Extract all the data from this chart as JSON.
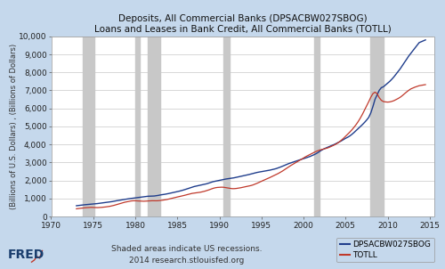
{
  "title_line1": "Deposits, All Commercial Banks (DPSACBW027SBOG)",
  "title_line2": "Loans and Leases in Bank Credit, All Commercial Banks (TOTLL)",
  "ylabel": "(Billions of U.S. Dollars) , (Billions of Dollars)",
  "xlabel_note": "Shaded areas indicate US recessions.\n2014 research.stlouisfed.org",
  "legend_labels": [
    "DPSACBW027SBOG",
    "TOTLL"
  ],
  "line_colors": [
    "#1f3d8c",
    "#c0392b"
  ],
  "xlim": [
    1970,
    2015.5
  ],
  "ylim": [
    0,
    10000
  ],
  "yticks": [
    0,
    1000,
    2000,
    3000,
    4000,
    5000,
    6000,
    7000,
    8000,
    9000,
    10000
  ],
  "xticks": [
    1970,
    1975,
    1980,
    1985,
    1990,
    1995,
    2000,
    2005,
    2010,
    2015
  ],
  "background_color": "#c5d8ec",
  "plot_bg_color": "#ffffff",
  "recession_bands": [
    [
      1973.75,
      1975.17
    ],
    [
      1980.0,
      1980.5
    ],
    [
      1981.5,
      1982.92
    ],
    [
      1990.5,
      1991.17
    ],
    [
      2001.25,
      2001.92
    ],
    [
      2007.92,
      2009.5
    ]
  ],
  "recession_color": "#c8c8c8",
  "deposits_years": [
    1973.0,
    1973.25,
    1973.5,
    1973.75,
    1974.0,
    1974.25,
    1974.5,
    1974.75,
    1975.0,
    1975.25,
    1975.5,
    1975.75,
    1976.0,
    1976.25,
    1976.5,
    1976.75,
    1977.0,
    1977.25,
    1977.5,
    1977.75,
    1978.0,
    1978.25,
    1978.5,
    1978.75,
    1979.0,
    1979.25,
    1979.5,
    1979.75,
    1980.0,
    1980.25,
    1980.5,
    1980.75,
    1981.0,
    1981.25,
    1981.5,
    1981.75,
    1982.0,
    1982.25,
    1982.5,
    1982.75,
    1983.0,
    1983.25,
    1983.5,
    1983.75,
    1984.0,
    1984.25,
    1984.5,
    1984.75,
    1985.0,
    1985.25,
    1985.5,
    1985.75,
    1986.0,
    1986.25,
    1986.5,
    1986.75,
    1987.0,
    1987.25,
    1987.5,
    1987.75,
    1988.0,
    1988.25,
    1988.5,
    1988.75,
    1989.0,
    1989.25,
    1989.5,
    1989.75,
    1990.0,
    1990.25,
    1990.5,
    1990.75,
    1991.0,
    1991.25,
    1991.5,
    1991.75,
    1992.0,
    1992.25,
    1992.5,
    1992.75,
    1993.0,
    1993.25,
    1993.5,
    1993.75,
    1994.0,
    1994.25,
    1994.5,
    1994.75,
    1995.0,
    1995.25,
    1995.5,
    1995.75,
    1996.0,
    1996.25,
    1996.5,
    1996.75,
    1997.0,
    1997.25,
    1997.5,
    1997.75,
    1998.0,
    1998.25,
    1998.5,
    1998.75,
    1999.0,
    1999.25,
    1999.5,
    1999.75,
    2000.0,
    2000.25,
    2000.5,
    2000.75,
    2001.0,
    2001.25,
    2001.5,
    2001.75,
    2002.0,
    2002.25,
    2002.5,
    2002.75,
    2003.0,
    2003.25,
    2003.5,
    2003.75,
    2004.0,
    2004.25,
    2004.5,
    2004.75,
    2005.0,
    2005.25,
    2005.5,
    2005.75,
    2006.0,
    2006.25,
    2006.5,
    2006.75,
    2007.0,
    2007.25,
    2007.5,
    2007.75,
    2008.0,
    2008.25,
    2008.5,
    2008.75,
    2009.0,
    2009.25,
    2009.5,
    2009.75,
    2010.0,
    2010.25,
    2010.5,
    2010.75,
    2011.0,
    2011.25,
    2011.5,
    2011.75,
    2012.0,
    2012.25,
    2012.5,
    2012.75,
    2013.0,
    2013.25,
    2013.5,
    2013.75,
    2014.0,
    2014.25,
    2014.5
  ],
  "deposits_values": [
    600,
    615,
    630,
    640,
    655,
    665,
    675,
    685,
    700,
    710,
    720,
    735,
    750,
    760,
    775,
    790,
    810,
    830,
    855,
    875,
    895,
    915,
    940,
    960,
    975,
    990,
    1005,
    1020,
    1040,
    1055,
    1070,
    1085,
    1100,
    1115,
    1125,
    1130,
    1130,
    1140,
    1155,
    1175,
    1200,
    1215,
    1235,
    1255,
    1280,
    1305,
    1330,
    1355,
    1380,
    1410,
    1440,
    1475,
    1510,
    1550,
    1590,
    1630,
    1665,
    1690,
    1710,
    1735,
    1760,
    1790,
    1820,
    1860,
    1900,
    1935,
    1960,
    1985,
    2010,
    2040,
    2065,
    2080,
    2100,
    2115,
    2130,
    2150,
    2175,
    2205,
    2230,
    2255,
    2280,
    2305,
    2330,
    2360,
    2395,
    2425,
    2450,
    2470,
    2490,
    2510,
    2530,
    2550,
    2575,
    2600,
    2630,
    2660,
    2700,
    2745,
    2790,
    2840,
    2890,
    2940,
    2980,
    3020,
    3060,
    3100,
    3140,
    3175,
    3210,
    3250,
    3290,
    3330,
    3380,
    3430,
    3490,
    3560,
    3640,
    3710,
    3770,
    3820,
    3870,
    3920,
    3970,
    4020,
    4080,
    4140,
    4200,
    4270,
    4340,
    4400,
    4470,
    4560,
    4660,
    4770,
    4880,
    4990,
    5100,
    5220,
    5350,
    5500,
    5750,
    6100,
    6500,
    6750,
    7000,
    7150,
    7200,
    7300,
    7400,
    7500,
    7620,
    7750,
    7900,
    8050,
    8200,
    8380,
    8550,
    8720,
    8900,
    9050,
    9200,
    9350,
    9500,
    9650,
    9700,
    9750,
    9800
  ],
  "loans_years": [
    1973.0,
    1973.25,
    1973.5,
    1973.75,
    1974.0,
    1974.25,
    1974.5,
    1974.75,
    1975.0,
    1975.25,
    1975.5,
    1975.75,
    1976.0,
    1976.25,
    1976.5,
    1976.75,
    1977.0,
    1977.25,
    1977.5,
    1977.75,
    1978.0,
    1978.25,
    1978.5,
    1978.75,
    1979.0,
    1979.25,
    1979.5,
    1979.75,
    1980.0,
    1980.25,
    1980.5,
    1980.75,
    1981.0,
    1981.25,
    1981.5,
    1981.75,
    1982.0,
    1982.25,
    1982.5,
    1982.75,
    1983.0,
    1983.25,
    1983.5,
    1983.75,
    1984.0,
    1984.25,
    1984.5,
    1984.75,
    1985.0,
    1985.25,
    1985.5,
    1985.75,
    1986.0,
    1986.25,
    1986.5,
    1986.75,
    1987.0,
    1987.25,
    1987.5,
    1987.75,
    1988.0,
    1988.25,
    1988.5,
    1988.75,
    1989.0,
    1989.25,
    1989.5,
    1989.75,
    1990.0,
    1990.25,
    1990.5,
    1990.75,
    1991.0,
    1991.25,
    1991.5,
    1991.75,
    1992.0,
    1992.25,
    1992.5,
    1992.75,
    1993.0,
    1993.25,
    1993.5,
    1993.75,
    1994.0,
    1994.25,
    1994.5,
    1994.75,
    1995.0,
    1995.25,
    1995.5,
    1995.75,
    1996.0,
    1996.25,
    1996.5,
    1996.75,
    1997.0,
    1997.25,
    1997.5,
    1997.75,
    1998.0,
    1998.25,
    1998.5,
    1998.75,
    1999.0,
    1999.25,
    1999.5,
    1999.75,
    2000.0,
    2000.25,
    2000.5,
    2000.75,
    2001.0,
    2001.25,
    2001.5,
    2001.75,
    2002.0,
    2002.25,
    2002.5,
    2002.75,
    2003.0,
    2003.25,
    2003.5,
    2003.75,
    2004.0,
    2004.25,
    2004.5,
    2004.75,
    2005.0,
    2005.25,
    2005.5,
    2005.75,
    2006.0,
    2006.25,
    2006.5,
    2006.75,
    2007.0,
    2007.25,
    2007.5,
    2007.75,
    2008.0,
    2008.25,
    2008.5,
    2008.75,
    2009.0,
    2009.25,
    2009.5,
    2009.75,
    2010.0,
    2010.25,
    2010.5,
    2010.75,
    2011.0,
    2011.25,
    2011.5,
    2011.75,
    2012.0,
    2012.25,
    2012.5,
    2012.75,
    2013.0,
    2013.25,
    2013.5,
    2013.75,
    2014.0,
    2014.25,
    2014.5
  ],
  "loans_values": [
    430,
    445,
    460,
    472,
    485,
    495,
    505,
    510,
    505,
    498,
    495,
    500,
    510,
    520,
    535,
    550,
    570,
    595,
    625,
    660,
    695,
    730,
    765,
    795,
    820,
    845,
    865,
    875,
    875,
    868,
    858,
    850,
    850,
    858,
    870,
    878,
    878,
    875,
    875,
    880,
    892,
    908,
    925,
    945,
    970,
    1000,
    1030,
    1060,
    1085,
    1110,
    1135,
    1165,
    1195,
    1225,
    1255,
    1285,
    1300,
    1315,
    1330,
    1350,
    1375,
    1405,
    1440,
    1480,
    1525,
    1565,
    1595,
    1615,
    1625,
    1630,
    1625,
    1605,
    1580,
    1560,
    1548,
    1548,
    1558,
    1575,
    1595,
    1620,
    1645,
    1670,
    1695,
    1720,
    1755,
    1800,
    1850,
    1905,
    1960,
    2010,
    2060,
    2110,
    2165,
    2220,
    2275,
    2330,
    2390,
    2455,
    2525,
    2600,
    2680,
    2760,
    2835,
    2905,
    2975,
    3045,
    3110,
    3175,
    3250,
    3320,
    3380,
    3440,
    3500,
    3560,
    3615,
    3660,
    3700,
    3730,
    3760,
    3790,
    3830,
    3880,
    3935,
    3990,
    4060,
    4140,
    4235,
    4340,
    4455,
    4570,
    4685,
    4810,
    4950,
    5100,
    5270,
    5460,
    5670,
    5900,
    6130,
    6370,
    6620,
    6820,
    6900,
    6820,
    6600,
    6450,
    6380,
    6360,
    6350,
    6360,
    6390,
    6430,
    6490,
    6550,
    6620,
    6710,
    6810,
    6910,
    7000,
    7080,
    7130,
    7180,
    7220,
    7260,
    7280,
    7300,
    7320
  ],
  "title_fontsize": 7.5,
  "tick_fontsize": 6.5,
  "label_fontsize": 6,
  "legend_fontsize": 6.5,
  "note_fontsize": 6.5,
  "fred_fontsize": 10
}
